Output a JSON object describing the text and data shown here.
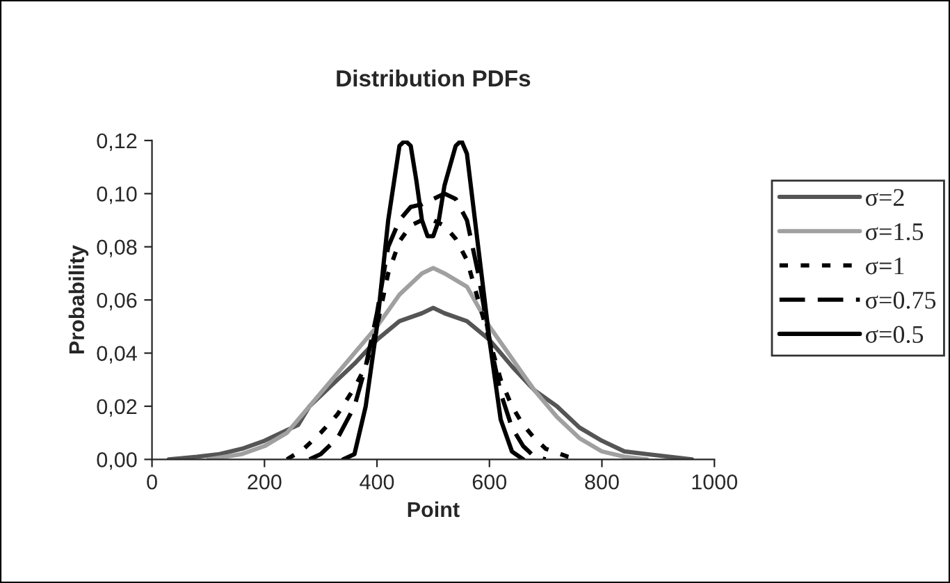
{
  "chart_data": {
    "type": "line",
    "title": "Distribution PDFs",
    "xlabel": "Point",
    "ylabel": "Probability",
    "xlim": [
      0,
      1000
    ],
    "xticks": [
      0,
      200,
      400,
      600,
      800,
      1000
    ],
    "ylim": [
      0,
      0.12
    ],
    "yticks": [
      {
        "value": 0,
        "label": "0,00"
      },
      {
        "value": 0.02,
        "label": "0,02"
      },
      {
        "value": 0.04,
        "label": "0,04"
      },
      {
        "value": 0.06,
        "label": "0,06"
      },
      {
        "value": 0.08,
        "label": "0,08"
      },
      {
        "value": 0.1,
        "label": "0,10"
      },
      {
        "value": 0.12,
        "label": "0,12"
      }
    ],
    "grid": false,
    "legend": "right",
    "series": [
      {
        "name": "σ=2",
        "color": "#555555",
        "line_style": "solid",
        "x": [
          30,
          80,
          120,
          160,
          200,
          240,
          260,
          280,
          320,
          360,
          400,
          440,
          480,
          500,
          520,
          560,
          600,
          640,
          680,
          720,
          760,
          800,
          840,
          880,
          920,
          960
        ],
        "values": [
          0,
          0.001,
          0.002,
          0.004,
          0.007,
          0.011,
          0.013,
          0.02,
          0.028,
          0.036,
          0.045,
          0.052,
          0.055,
          0.057,
          0.055,
          0.052,
          0.045,
          0.035,
          0.026,
          0.02,
          0.012,
          0.007,
          0.003,
          0.002,
          0.001,
          0
        ]
      },
      {
        "name": "σ=1.5",
        "color": "#a0a0a0",
        "line_style": "solid",
        "x": [
          100,
          160,
          200,
          240,
          280,
          320,
          360,
          400,
          440,
          480,
          500,
          520,
          560,
          600,
          640,
          680,
          720,
          760,
          800,
          840,
          880
        ],
        "values": [
          0,
          0.002,
          0.005,
          0.01,
          0.02,
          0.03,
          0.04,
          0.05,
          0.062,
          0.07,
          0.072,
          0.07,
          0.065,
          0.05,
          0.038,
          0.026,
          0.016,
          0.008,
          0.003,
          0.001,
          0
        ]
      },
      {
        "name": "σ=1",
        "color": "#000000",
        "line_style": "dotted",
        "x": [
          240,
          270,
          300,
          330,
          360,
          380,
          400,
          420,
          440,
          460,
          480,
          500,
          520,
          540,
          560,
          580,
          600,
          620,
          640,
          660,
          680,
          700,
          740,
          760
        ],
        "values": [
          0,
          0.004,
          0.01,
          0.017,
          0.027,
          0.035,
          0.05,
          0.07,
          0.082,
          0.088,
          0.09,
          0.09,
          0.088,
          0.083,
          0.075,
          0.06,
          0.045,
          0.03,
          0.02,
          0.013,
          0.008,
          0.004,
          0.001,
          0
        ]
      },
      {
        "name": "σ=0.75",
        "color": "#000000",
        "line_style": "dashed",
        "x": [
          280,
          300,
          330,
          360,
          380,
          400,
          420,
          440,
          460,
          480,
          500,
          520,
          540,
          560,
          580,
          600,
          620,
          640,
          660,
          680,
          700
        ],
        "values": [
          0,
          0.002,
          0.008,
          0.02,
          0.035,
          0.055,
          0.08,
          0.09,
          0.095,
          0.096,
          0.098,
          0.1,
          0.098,
          0.09,
          0.07,
          0.045,
          0.025,
          0.012,
          0.005,
          0.001,
          0
        ]
      },
      {
        "name": "σ=0.5",
        "color": "#000000",
        "line_style": "solid",
        "x": [
          340,
          360,
          380,
          400,
          420,
          440,
          450,
          460,
          470,
          480,
          490,
          500,
          510,
          520,
          540,
          550,
          560,
          580,
          600,
          620,
          640,
          660
        ],
        "values": [
          0,
          0.002,
          0.02,
          0.05,
          0.09,
          0.118,
          0.12,
          0.118,
          0.105,
          0.09,
          0.084,
          0.084,
          0.09,
          0.103,
          0.118,
          0.12,
          0.115,
          0.08,
          0.045,
          0.015,
          0.003,
          0
        ]
      }
    ]
  }
}
